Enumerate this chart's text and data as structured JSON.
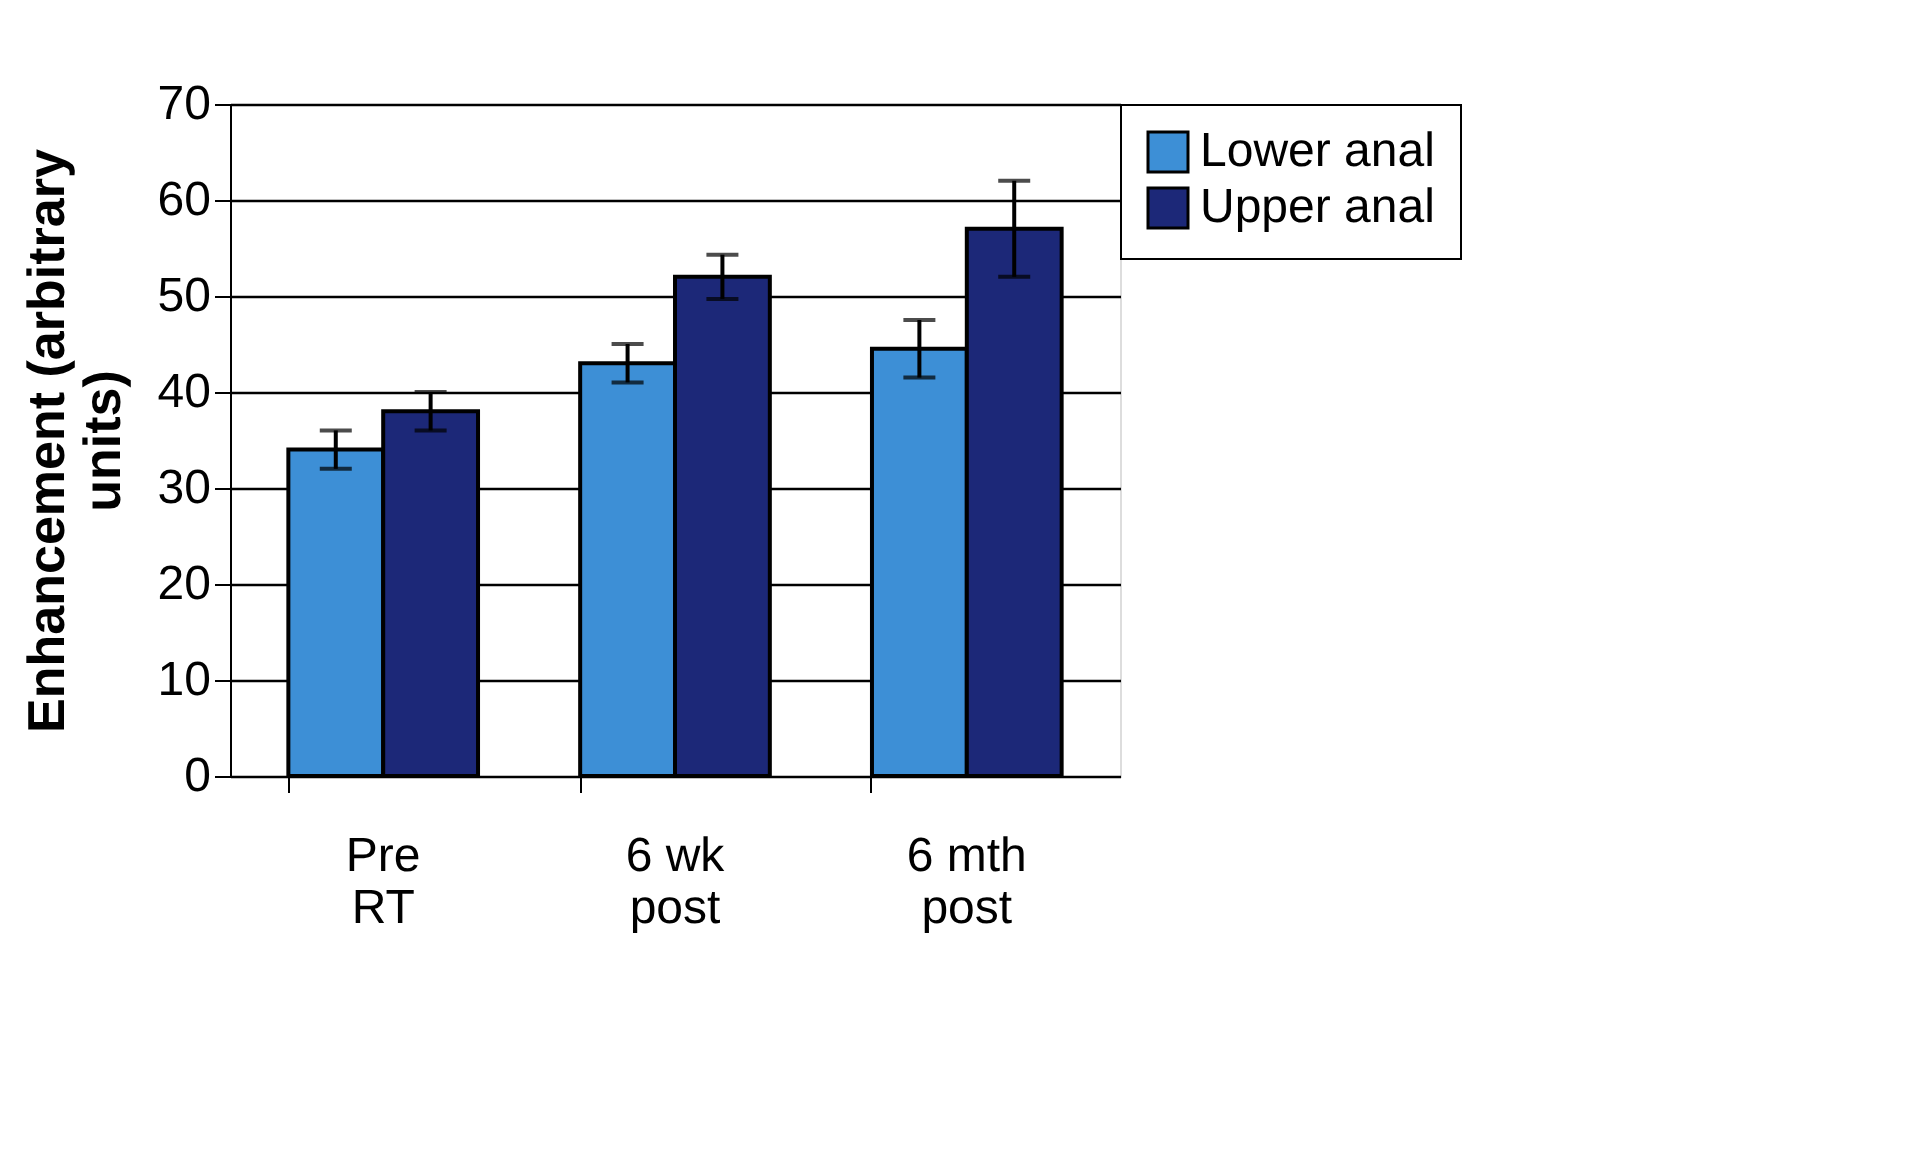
{
  "chart_data": {
    "type": "bar",
    "ylabel": "Enhancement (arbitrary units)",
    "categories": [
      "Pre\nRT",
      "6 wk\npost",
      "6 mth\npost"
    ],
    "series": [
      {
        "name": "Lower anal",
        "color": "#3d8fd6",
        "values": [
          34,
          43,
          44.5
        ],
        "errors": [
          2,
          2,
          3
        ]
      },
      {
        "name": "Upper anal",
        "color": "#1c2878",
        "values": [
          38,
          52,
          57
        ],
        "errors": [
          2,
          2.3,
          5
        ]
      }
    ],
    "ylim": [
      0,
      70
    ],
    "yticks": [
      0,
      10,
      20,
      30,
      40,
      50,
      60,
      70
    ],
    "grid": "y",
    "legend": "right"
  }
}
